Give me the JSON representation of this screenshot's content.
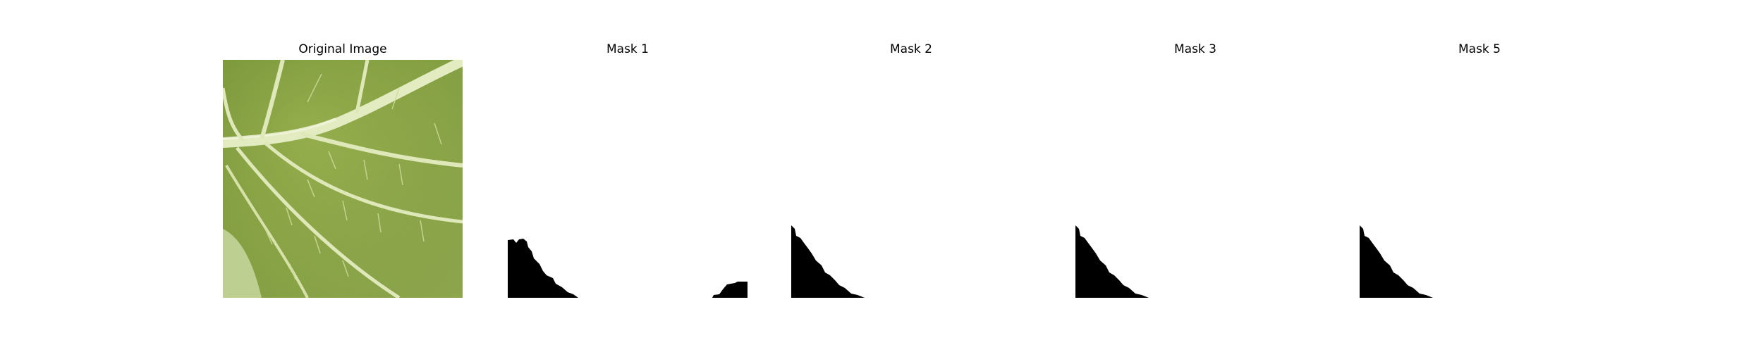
{
  "figure": {
    "panels": [
      {
        "title": "Original Image",
        "kind": "leaf-photo"
      },
      {
        "title": "Mask 1",
        "kind": "mask"
      },
      {
        "title": "Mask 2",
        "kind": "mask"
      },
      {
        "title": "Mask 3",
        "kind": "mask"
      },
      {
        "title": "Mask 5",
        "kind": "mask"
      }
    ]
  },
  "colors": {
    "leaf_base": "#8aa446",
    "leaf_light": "#a9bd63",
    "leaf_dark": "#6f8f35",
    "vein": "#dfe8b8",
    "mask_fill": "#000000",
    "background": "#ffffff"
  }
}
